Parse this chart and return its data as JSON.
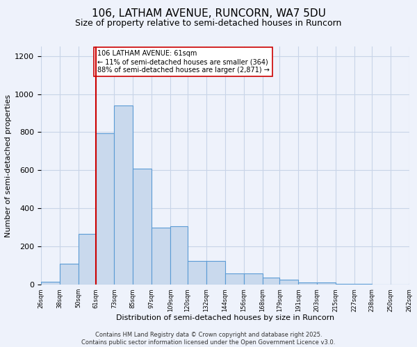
{
  "title_line1": "106, LATHAM AVENUE, RUNCORN, WA7 5DU",
  "title_line2": "Size of property relative to semi-detached houses in Runcorn",
  "xlabel": "Distribution of semi-detached houses by size in Runcorn",
  "ylabel": "Number of semi-detached properties",
  "footnote_line1": "Contains HM Land Registry data © Crown copyright and database right 2025.",
  "footnote_line2": "Contains public sector information licensed under the Open Government Licence v3.0.",
  "annotation_line1": "106 LATHAM AVENUE: 61sqm",
  "annotation_line2": "← 11% of semi-detached houses are smaller (364)",
  "annotation_line3": "88% of semi-detached houses are larger (2,871) →",
  "property_size": 61,
  "bar_color": "#c9d9ed",
  "bar_edge_color": "#5b9bd5",
  "vline_color": "#cc0000",
  "grid_color": "#c8d4e8",
  "background_color": "#eef2fb",
  "annotation_box_color": "#ffffff",
  "annotation_box_edge": "#cc0000",
  "ylim": [
    0,
    1250
  ],
  "yticks": [
    0,
    200,
    400,
    600,
    800,
    1000,
    1200
  ],
  "bin_edges": [
    26,
    38,
    50,
    61,
    73,
    85,
    97,
    109,
    120,
    132,
    144,
    156,
    168,
    179,
    191,
    203,
    215,
    227,
    238,
    250,
    262
  ],
  "bin_counts": [
    15,
    110,
    265,
    795,
    940,
    610,
    300,
    305,
    125,
    125,
    60,
    60,
    38,
    25,
    12,
    10,
    5,
    4,
    2,
    2,
    8
  ],
  "title_fontsize": 11,
  "subtitle_fontsize": 9,
  "footnote_fontsize": 6,
  "ylabel_fontsize": 8,
  "xlabel_fontsize": 8,
  "ytick_fontsize": 8,
  "xtick_fontsize": 6,
  "ann_fontsize": 7
}
